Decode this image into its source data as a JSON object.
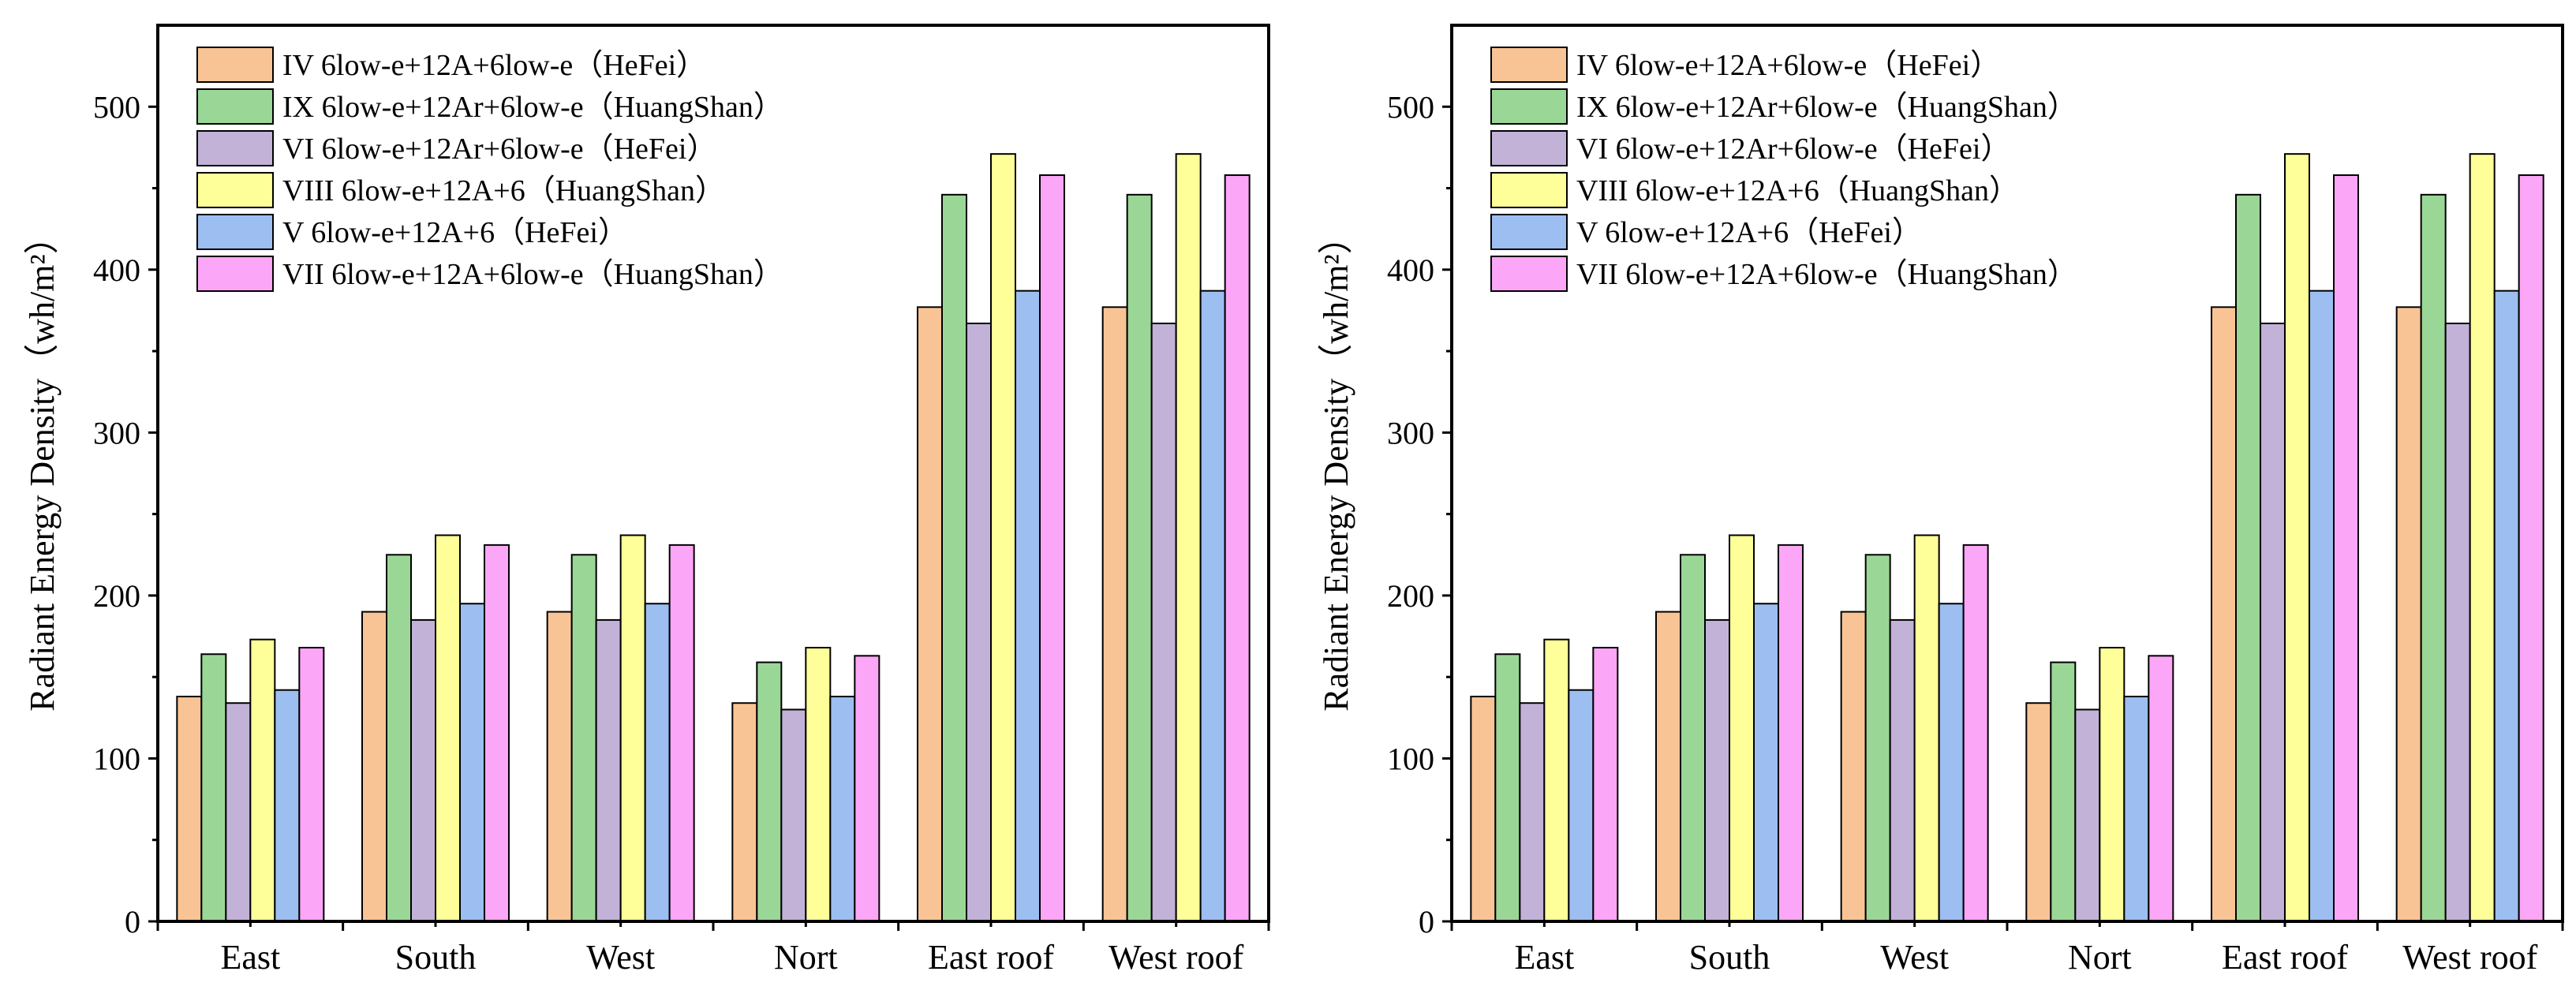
{
  "figure": {
    "panels": 2
  },
  "chart_data": [
    {
      "type": "bar",
      "title": "",
      "xlabel": "",
      "ylabel": "Radiant Energy Density",
      "ylabel_unit": "（wh/m²）",
      "ylim": [
        0,
        550
      ],
      "yticks": [
        0,
        100,
        200,
        300,
        400,
        500
      ],
      "grid": false,
      "legend_position": "top-left",
      "categories": [
        "East",
        "South",
        "West",
        "Nort",
        "East roof",
        "West roof"
      ],
      "series": [
        {
          "name": "IV  6low-e+12A+6low-e（HeFei）",
          "color": "#F9C495",
          "values": [
            138,
            190,
            190,
            134,
            377,
            377
          ]
        },
        {
          "name": "IX  6low-e+12Ar+6low-e（HuangShan）",
          "color": "#9AD796",
          "values": [
            164,
            225,
            225,
            159,
            446,
            446
          ]
        },
        {
          "name": "VI  6low-e+12Ar+6low-e（HeFei）",
          "color": "#C2B2D8",
          "values": [
            134,
            185,
            185,
            130,
            367,
            367
          ]
        },
        {
          "name": "VIII  6low-e+12A+6（HuangShan）",
          "color": "#FFFF99",
          "values": [
            173,
            237,
            237,
            168,
            471,
            471
          ]
        },
        {
          "name": "V  6low-e+12A+6（HeFei）",
          "color": "#9CBEF0",
          "values": [
            142,
            195,
            195,
            138,
            387,
            387
          ]
        },
        {
          "name": "VII  6low-e+12A+6low-e（HuangShan）",
          "color": "#FBA6F6",
          "values": [
            168,
            231,
            231,
            163,
            458,
            458
          ]
        }
      ]
    },
    {
      "type": "bar",
      "title": "",
      "xlabel": "",
      "ylabel": "Radiant Energy Density",
      "ylabel_unit": "（wh/m²）",
      "ylim": [
        0,
        550
      ],
      "yticks": [
        0,
        100,
        200,
        300,
        400,
        500
      ],
      "grid": false,
      "legend_position": "top-left",
      "categories": [
        "East",
        "South",
        "West",
        "Nort",
        "East roof",
        "West roof"
      ],
      "series": [
        {
          "name": "IV  6low-e+12A+6low-e（HeFei）",
          "color": "#F9C495",
          "values": [
            138,
            190,
            190,
            134,
            377,
            377
          ]
        },
        {
          "name": "IX  6low-e+12Ar+6low-e（HuangShan）",
          "color": "#9AD796",
          "values": [
            164,
            225,
            225,
            159,
            446,
            446
          ]
        },
        {
          "name": "VI  6low-e+12Ar+6low-e（HeFei）",
          "color": "#C2B2D8",
          "values": [
            134,
            185,
            185,
            130,
            367,
            367
          ]
        },
        {
          "name": "VIII  6low-e+12A+6（HuangShan）",
          "color": "#FFFF99",
          "values": [
            173,
            237,
            237,
            168,
            471,
            471
          ]
        },
        {
          "name": "V  6low-e+12A+6（HeFei）",
          "color": "#9CBEF0",
          "values": [
            142,
            195,
            195,
            138,
            387,
            387
          ]
        },
        {
          "name": "VII  6low-e+12A+6low-e（HuangShan）",
          "color": "#FBA6F6",
          "values": [
            168,
            231,
            231,
            163,
            458,
            458
          ]
        }
      ]
    }
  ]
}
